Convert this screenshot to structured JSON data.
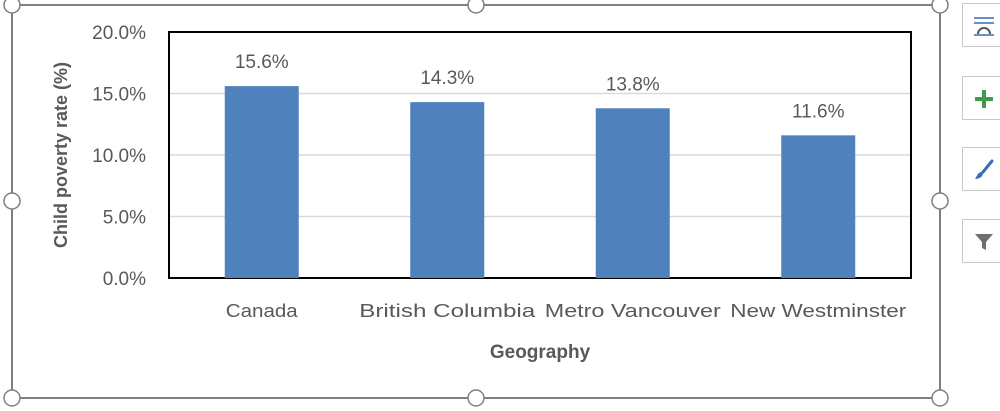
{
  "chart_data": {
    "type": "bar",
    "title": "",
    "xlabel": "Geography",
    "ylabel": "Child poverty rate (%)",
    "categories": [
      "Canada",
      "British Columbia",
      "Metro Vancouver",
      "New Westminster"
    ],
    "values": [
      15.6,
      14.3,
      13.8,
      11.6
    ],
    "value_labels": [
      "15.6%",
      "14.3%",
      "13.8%",
      "11.6%"
    ],
    "ylim": [
      0,
      20
    ],
    "yticks": [
      0,
      5,
      10,
      15,
      20
    ],
    "ytick_labels": [
      "0.0%",
      "5.0%",
      "10.0%",
      "15.0%",
      "20.0%"
    ],
    "grid": true,
    "legend": "none",
    "colors": {
      "bar": "#4f81bd",
      "grid": "#d9d9d9",
      "axis": "#000000",
      "text": "#595959",
      "selection": "#7f7f7f"
    }
  },
  "toolbar": {
    "buttons": [
      {
        "name": "layout-options-button",
        "icon": "layout-options-icon"
      },
      {
        "name": "chart-elements-button",
        "icon": "plus-icon"
      },
      {
        "name": "chart-styles-button",
        "icon": "paintbrush-icon"
      },
      {
        "name": "chart-filters-button",
        "icon": "filter-icon"
      }
    ]
  }
}
